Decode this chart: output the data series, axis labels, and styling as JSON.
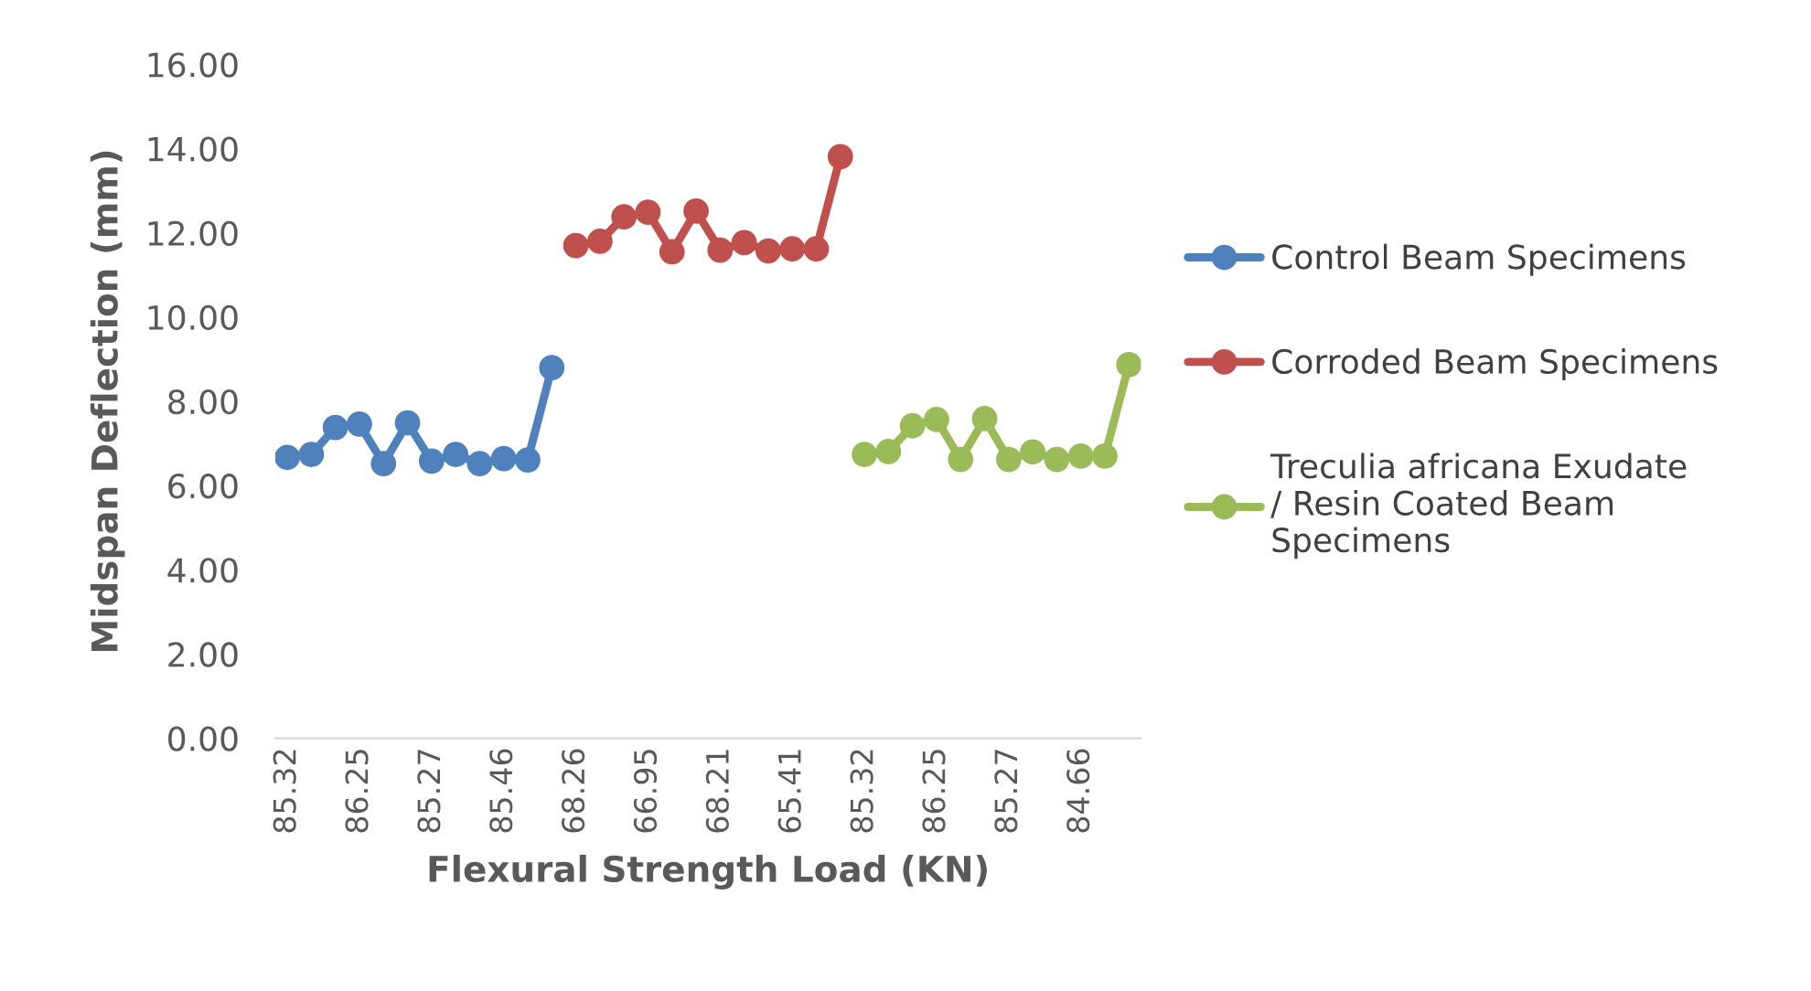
{
  "chart_data": {
    "type": "line",
    "xlabel": "Flexural Strength Load (KN)",
    "ylabel": "Midspan Deflection (mm)",
    "categories": [
      "85.32",
      null,
      null,
      "86.25",
      null,
      null,
      "85.27",
      null,
      null,
      "85.46",
      null,
      null,
      "68.26",
      null,
      null,
      "66.95",
      null,
      null,
      "68.21",
      null,
      null,
      "65.41",
      null,
      null,
      "85.32",
      null,
      null,
      "86.25",
      null,
      null,
      "85.27",
      null,
      null,
      "84.66",
      null,
      null
    ],
    "series": [
      {
        "name": "Control Beam Specimens",
        "color": "#4f81bd",
        "values": [
          6.67,
          6.74,
          7.38,
          7.46,
          6.52,
          7.49,
          6.58,
          6.74,
          6.52,
          6.64,
          6.61,
          8.8,
          null,
          null,
          null,
          null,
          null,
          null,
          null,
          null,
          null,
          null,
          null,
          null,
          null,
          null,
          null,
          null,
          null,
          null,
          null,
          null,
          null,
          null,
          null,
          null
        ]
      },
      {
        "name": "Corroded Beam Specimens",
        "color": "#c0504d",
        "values": [
          null,
          null,
          null,
          null,
          null,
          null,
          null,
          null,
          null,
          null,
          null,
          null,
          11.7,
          11.8,
          12.38,
          12.49,
          11.55,
          12.52,
          11.59,
          11.77,
          11.57,
          11.62,
          11.62,
          13.81,
          null,
          null,
          null,
          null,
          null,
          null,
          null,
          null,
          null,
          null,
          null,
          null
        ]
      },
      {
        "name": "Treculia africana Exudate\n/ Resin Coated Beam\nSpecimens",
        "color": "#9bbb59",
        "values": [
          null,
          null,
          null,
          null,
          null,
          null,
          null,
          null,
          null,
          null,
          null,
          null,
          null,
          null,
          null,
          null,
          null,
          null,
          null,
          null,
          null,
          null,
          null,
          null,
          6.74,
          6.81,
          7.42,
          7.57,
          6.62,
          7.59,
          6.62,
          6.8,
          6.62,
          6.7,
          6.7,
          8.87
        ]
      }
    ],
    "ylim": [
      0,
      16
    ],
    "yticks": [
      {
        "value": 0,
        "label": "0.00"
      },
      {
        "value": 2,
        "label": "2.00"
      },
      {
        "value": 4,
        "label": "4.00"
      },
      {
        "value": 6,
        "label": "6.00"
      },
      {
        "value": 8,
        "label": "8.00"
      },
      {
        "value": 10,
        "label": "10.00"
      },
      {
        "value": 12,
        "label": "12.00"
      },
      {
        "value": 14,
        "label": "14.00"
      },
      {
        "value": 16,
        "label": "16.00"
      }
    ],
    "legend": "right",
    "marker": "circle",
    "line_style": "solid"
  }
}
